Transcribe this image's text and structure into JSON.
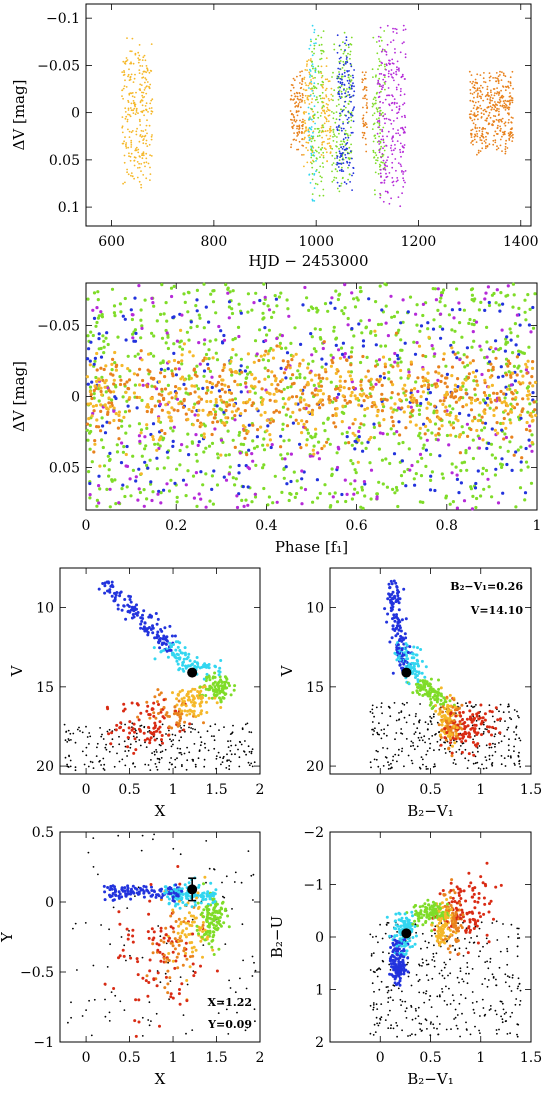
{
  "colors": {
    "orange": "#e8821e",
    "yellow_orange": "#f5b82a",
    "cyan": "#33d6f0",
    "green": "#7fdc28",
    "blue": "#2233dd",
    "magenta": "#b52ad8",
    "red": "#d92b14",
    "black": "#000000"
  },
  "chart_data": [
    {
      "id": "lightcurve",
      "type": "scatter",
      "xlabel": "HJD − 2453000",
      "ylabel": "ΔV [mag]",
      "xlim": [
        550,
        1420
      ],
      "ylim": [
        0.12,
        -0.115
      ],
      "xticks": [
        600,
        800,
        1000,
        1200,
        1400
      ],
      "yticks": [
        -0.1,
        -0.05,
        0,
        0.05,
        0.1
      ],
      "ytick_labels": [
        "−0.1",
        "−0.05",
        "0",
        "0.05",
        "0.1"
      ],
      "series": [
        {
          "color": "yellow_orange",
          "x_ranges": [
            [
              620,
              680
            ]
          ],
          "amplitude": 0.08
        },
        {
          "color": "orange",
          "x_ranges": [
            [
              950,
              975
            ],
            [
              1090,
              1100
            ],
            [
              1300,
              1385
            ]
          ],
          "amplitude": 0.045
        },
        {
          "color": "yellow_orange",
          "x_ranges": [
            [
              975,
              995
            ],
            [
              1010,
              1030
            ]
          ],
          "amplitude": 0.06
        },
        {
          "color": "cyan",
          "x_ranges": [
            [
              985,
              1000
            ]
          ],
          "amplitude": 0.095
        },
        {
          "color": "green",
          "x_ranges": [
            [
              990,
              1015
            ],
            [
              1030,
              1070
            ],
            [
              1110,
              1135
            ]
          ],
          "amplitude": 0.09
        },
        {
          "color": "blue",
          "x_ranges": [
            [
              1040,
              1075
            ]
          ],
          "amplitude": 0.085
        },
        {
          "color": "magenta",
          "x_ranges": [
            [
              1120,
              1175
            ]
          ],
          "amplitude": 0.1
        }
      ]
    },
    {
      "id": "phased",
      "type": "scatter",
      "xlabel": "Phase [f₁]",
      "ylabel": "ΔV [mag]",
      "xlim": [
        0,
        1
      ],
      "ylim": [
        0.08,
        -0.08
      ],
      "xticks": [
        0,
        0.2,
        0.4,
        0.6,
        0.8,
        1
      ],
      "xtick_labels": [
        "0",
        "0.2",
        "0.4",
        "0.6",
        "0.8",
        "1"
      ],
      "yticks": [
        -0.05,
        0,
        0.05
      ],
      "ytick_labels": [
        "−0.05",
        "0",
        "0.05"
      ],
      "series": [
        {
          "color": "green",
          "amplitude": 0.08
        },
        {
          "color": "blue",
          "amplitude": 0.07
        },
        {
          "color": "magenta",
          "amplitude": 0.08
        },
        {
          "color": "orange",
          "amplitude": 0.03
        },
        {
          "color": "yellow_orange",
          "amplitude": 0.03
        }
      ]
    },
    {
      "id": "cmd_x_v",
      "type": "scatter",
      "xlabel": "X",
      "ylabel": "V",
      "xlim": [
        -0.3,
        2.0
      ],
      "ylim": [
        20.5,
        7.5
      ],
      "xticks": [
        0,
        0.5,
        1,
        1.5,
        2
      ],
      "xtick_labels": [
        "0",
        "0.5",
        "1",
        "1.5",
        "2"
      ],
      "yticks": [
        10,
        15,
        20
      ],
      "highlight_point": {
        "x": 1.22,
        "y": 14.1,
        "err_y": 0
      }
    },
    {
      "id": "cmd_bv_v",
      "type": "scatter",
      "xlabel": "B₂−V₁",
      "ylabel": "V",
      "xlim": [
        -0.5,
        1.5
      ],
      "ylim": [
        20.5,
        7.5
      ],
      "xticks": [
        0,
        0.5,
        1,
        1.5
      ],
      "xtick_labels": [
        "0",
        "0.5",
        "1",
        "1.5"
      ],
      "yticks": [
        10,
        15,
        20
      ],
      "annotations": [
        "B₂−V₁=0.26",
        "V=14.10"
      ],
      "highlight_point": {
        "x": 0.26,
        "y": 14.1,
        "err_y": 0
      }
    },
    {
      "id": "xy_plane",
      "type": "scatter",
      "xlabel": "X",
      "ylabel": "Y",
      "xlim": [
        -0.3,
        2.0
      ],
      "ylim": [
        -1.0,
        0.5
      ],
      "xticks": [
        0,
        0.5,
        1,
        1.5,
        2
      ],
      "xtick_labels": [
        "0",
        "0.5",
        "1",
        "1.5",
        "2"
      ],
      "yticks": [
        0.5,
        0,
        -0.5,
        -1
      ],
      "ytick_labels": [
        "0.5",
        "0",
        "−0.5",
        "−1"
      ],
      "annotations": [
        "X=1.22",
        "Y=0.09"
      ],
      "highlight_point": {
        "x": 1.22,
        "y": 0.09,
        "err_y": 0.08
      }
    },
    {
      "id": "ccd_bv_bu",
      "type": "scatter",
      "xlabel": "B₂−V₁",
      "ylabel": "B₂−U",
      "xlim": [
        -0.5,
        1.5
      ],
      "ylim": [
        2,
        -2
      ],
      "xticks": [
        0,
        0.5,
        1,
        1.5
      ],
      "xtick_labels": [
        "0",
        "0.5",
        "1",
        "1.5"
      ],
      "yticks": [
        2,
        1,
        0,
        -1,
        -2
      ],
      "ytick_labels": [
        "2",
        "1",
        "0",
        "−1",
        "−2"
      ],
      "highlight_point": {
        "x": 0.26,
        "y": -0.07,
        "err_y": 0
      }
    }
  ]
}
